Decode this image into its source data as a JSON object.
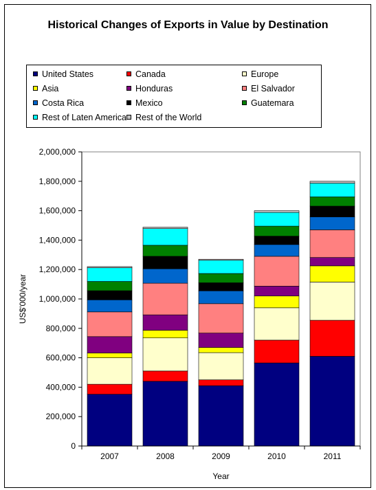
{
  "chart_data": {
    "type": "bar",
    "stacked": true,
    "title": "Historical Changes of Exports in Value by Destination",
    "xlabel": "Year",
    "ylabel": "US$'000/year",
    "ylim": [
      0,
      2000000
    ],
    "y_ticks": [
      "0",
      "200,000",
      "400,000",
      "600,000",
      "800,000",
      "1,000,000",
      "1,200,000",
      "1,400,000",
      "1,600,000",
      "1,800,000",
      "2,000,000"
    ],
    "categories": [
      "2007",
      "2008",
      "2009",
      "2010",
      "2011"
    ],
    "series": [
      {
        "name": "United States",
        "color": "#000080",
        "values": [
          352000,
          440000,
          410000,
          565000,
          610000
        ]
      },
      {
        "name": "Canada",
        "color": "#FF0000",
        "values": [
          68000,
          70000,
          40000,
          155000,
          245000
        ]
      },
      {
        "name": "Europe",
        "color": "#FFFFCC",
        "values": [
          180000,
          225000,
          185000,
          220000,
          260000
        ]
      },
      {
        "name": "Asia",
        "color": "#FFFF00",
        "values": [
          32000,
          52000,
          35000,
          80000,
          110000
        ]
      },
      {
        "name": "Honduras",
        "color": "#800080",
        "values": [
          112000,
          105000,
          98000,
          67000,
          57000
        ]
      },
      {
        "name": "El Salvador",
        "color": "#FF8080",
        "values": [
          168000,
          215000,
          200000,
          203000,
          188000
        ]
      },
      {
        "name": "Costa Rica",
        "color": "#0066CC",
        "values": [
          82000,
          98000,
          87000,
          80000,
          88000
        ]
      },
      {
        "name": "Mexico",
        "color": "#000000",
        "values": [
          62000,
          85000,
          55000,
          57000,
          73000
        ]
      },
      {
        "name": "Guatemara",
        "color": "#008000",
        "values": [
          63000,
          75000,
          63000,
          68000,
          63000
        ]
      },
      {
        "name": "Rest of Laten America",
        "color": "#00FFFF",
        "values": [
          93000,
          113000,
          90000,
          93000,
          93000
        ]
      },
      {
        "name": "Rest of the World",
        "color": "#C0C0C0",
        "values": [
          8000,
          10000,
          7000,
          12000,
          13000
        ]
      }
    ],
    "legend_position": "top",
    "grid": false
  }
}
